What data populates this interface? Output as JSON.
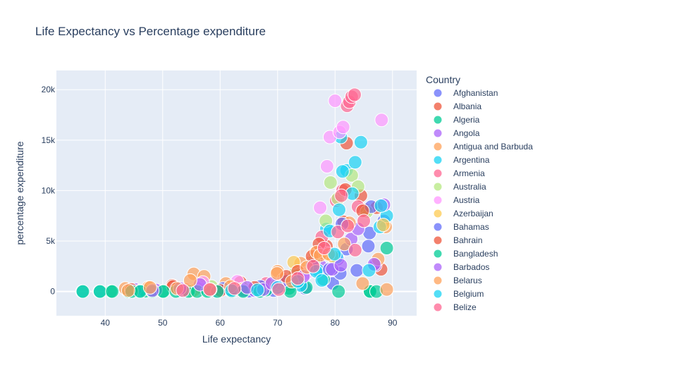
{
  "chart_data": {
    "type": "scatter",
    "title": "Life Expectancy vs Percentage expenditure",
    "xlabel": "Life expectancy",
    "ylabel": "percentage expenditure",
    "xlim": [
      31.5,
      94.2
    ],
    "ylim": [
      -2400,
      21900
    ],
    "x_ticks": [
      40,
      50,
      60,
      70,
      80,
      90
    ],
    "y_ticks": [
      0,
      5000,
      10000,
      15000,
      20000
    ],
    "y_tick_labels": [
      "0",
      "5k",
      "10k",
      "15k",
      "20k"
    ],
    "grid": true,
    "legend": {
      "title": "Country",
      "placement": "right"
    },
    "series": [
      {
        "name": "Afghanistan",
        "color": "#636efa",
        "x": [
          58.2,
          59.5,
          62.1,
          65.0,
          69.3,
          74.8,
          79.6,
          80.9,
          82.0,
          83.8,
          86.0,
          88.5
        ],
        "y": [
          40,
          60,
          30,
          20,
          100,
          300,
          800,
          1800,
          4200,
          2100,
          5800,
          7000
        ]
      },
      {
        "name": "Albania",
        "color": "#EF553B",
        "x": [
          51.7,
          56.0,
          61.8,
          63.5,
          72.0,
          76.0,
          77.0,
          78.5,
          81.5,
          82.0,
          84.5,
          85.3,
          87.2,
          88.0
        ],
        "y": [
          600,
          300,
          100,
          900,
          700,
          3000,
          3600,
          4500,
          6900,
          14700,
          9500,
          8100,
          8300,
          2200
        ]
      },
      {
        "name": "Algeria",
        "color": "#00cc96",
        "x": [
          41.0,
          44.0,
          47.0,
          50.0,
          55.0,
          58.0,
          62.0,
          68.0,
          72.0,
          75.0,
          78.0,
          86.0,
          89.0
        ],
        "y": [
          10,
          5,
          20,
          15,
          50,
          100,
          200,
          150,
          300,
          400,
          1200,
          50,
          4300
        ]
      },
      {
        "name": "Angola",
        "color": "#ab63fa",
        "x": [
          45.2,
          48.8,
          52.3,
          56.5,
          66.0,
          77.5,
          80.5,
          82.8,
          84.0,
          87.0
        ],
        "y": [
          200,
          150,
          300,
          400,
          100,
          2500,
          3200,
          5200,
          6200,
          2600
        ]
      },
      {
        "name": "Antigua and Barbuda",
        "color": "#FFA15A",
        "x": [
          43.5,
          47.5,
          55.4,
          57.2,
          61.0,
          70.0,
          71.0,
          74.0,
          76.5,
          78.6,
          82.5,
          87.5,
          88.8
        ],
        "y": [
          300,
          400,
          1750,
          1500,
          800,
          2000,
          1200,
          2800,
          3800,
          3800,
          6800,
          3200,
          6400
        ]
      },
      {
        "name": "Argentina",
        "color": "#19d3f3",
        "x": [
          36.0,
          39.0,
          46.0,
          53.0,
          60.0,
          70.0,
          74.0,
          77.0,
          78.5,
          80.3,
          81.0,
          82.0,
          83.5,
          84.5,
          87.8,
          89.0
        ],
        "y": [
          0,
          0,
          50,
          100,
          200,
          300,
          600,
          2100,
          6200,
          3400,
          15300,
          12000,
          12800,
          14800,
          6400,
          7500
        ]
      },
      {
        "name": "Armenia",
        "color": "#FF6692",
        "x": [
          54.0,
          62.5,
          68.0,
          73.5,
          77.7,
          80.2,
          81.3,
          82.1,
          82.5,
          82.9,
          83.4,
          84.0
        ],
        "y": [
          200,
          100,
          800,
          1600,
          5400,
          9000,
          10000,
          18400,
          18800,
          19300,
          19500,
          8400
        ]
      },
      {
        "name": "Australia",
        "color": "#B6E880",
        "x": [
          58.5,
          64.0,
          69.8,
          73.0,
          76.3,
          78.4,
          79.2,
          80.5,
          82.9,
          84.0,
          85.5
        ],
        "y": [
          500,
          300,
          600,
          1800,
          3000,
          7000,
          10800,
          9200,
          11500,
          10400,
          7900
        ]
      },
      {
        "name": "Austria",
        "color": "#FF97FF",
        "x": [
          57.0,
          63.0,
          70.5,
          75.0,
          77.4,
          78.6,
          79.1,
          80.0,
          80.8,
          81.4,
          88.1
        ],
        "y": [
          900,
          1000,
          800,
          1800,
          8300,
          12400,
          15300,
          18900,
          15800,
          16300,
          17000
        ]
      },
      {
        "name": "Azerbaijan",
        "color": "#FECB52",
        "x": [
          55.4,
          63.6,
          72.8,
          79.5,
          88.4
        ],
        "y": [
          100,
          200,
          2900,
          3500,
          6600
        ]
      },
      {
        "name": "Bahamas",
        "color": "#636efa",
        "x": [
          60.5,
          64.0,
          67.0,
          71.5,
          76.0,
          79.0,
          81.2,
          85.8,
          86.3
        ],
        "y": [
          300,
          100,
          500,
          1000,
          2600,
          2200,
          6700,
          4500,
          8400
        ]
      },
      {
        "name": "Bahrain",
        "color": "#EF553B",
        "x": [
          44.5,
          51.8,
          60.0,
          66.0,
          71.5,
          73.5,
          76.0,
          77.2,
          81.8,
          84.8
        ],
        "y": [
          200,
          500,
          100,
          400,
          1500,
          2000,
          3500,
          4700,
          10100,
          8000
        ]
      },
      {
        "name": "Bangladesh",
        "color": "#00cc96",
        "x": [
          36.1,
          39.1,
          41.2,
          44.6,
          46.1,
          48.2,
          50.1,
          52.3,
          54.5,
          56.0,
          57.8,
          59.5,
          62.0,
          64.0,
          66.9,
          72.2,
          80.6,
          86.1,
          87.2
        ],
        "y": [
          0,
          0,
          0,
          0,
          0,
          0,
          0,
          0,
          0,
          0,
          0,
          0,
          0,
          0,
          0,
          0,
          0,
          0,
          0
        ]
      },
      {
        "name": "Barbados",
        "color": "#ab63fa",
        "x": [
          48.2,
          53.0,
          56.5,
          64.7,
          67.5,
          69.0,
          74.5,
          79.5,
          81.0,
          86.8,
          88.5
        ],
        "y": [
          100,
          300,
          700,
          400,
          200,
          800,
          1500,
          2200,
          2600,
          2700,
          8600
        ]
      },
      {
        "name": "Belarus",
        "color": "#FFA15A",
        "x": [
          44.0,
          47.8,
          52.5,
          54.8,
          58.3,
          61.8,
          69.9,
          72.5,
          75.1,
          76.8,
          77.4,
          78.9,
          81.6,
          84.8,
          89.0
        ],
        "y": [
          100,
          400,
          300,
          1100,
          200,
          500,
          1800,
          1000,
          2400,
          3900,
          3600,
          3700,
          4700,
          800,
          200
        ]
      },
      {
        "name": "Belgium",
        "color": "#19d3f3",
        "x": [
          62.0,
          66.5,
          70.0,
          73.5,
          76.7,
          77.7,
          79.1,
          79.9,
          80.7,
          81.3,
          83.0,
          85.9,
          88.0
        ],
        "y": [
          100,
          150,
          400,
          1000,
          2000,
          1100,
          6000,
          3700,
          8100,
          11900,
          9700,
          2100,
          8500
        ]
      },
      {
        "name": "Belize",
        "color": "#FF6692",
        "x": [
          53.5,
          58.2,
          62.5,
          70.2,
          73.5,
          76.2,
          78.1,
          80.5,
          81.1,
          82.2,
          83.5,
          85.0
        ],
        "y": [
          100,
          200,
          300,
          200,
          1300,
          2500,
          4300,
          5900,
          9500,
          6500,
          4100,
          7000
        ]
      }
    ]
  }
}
